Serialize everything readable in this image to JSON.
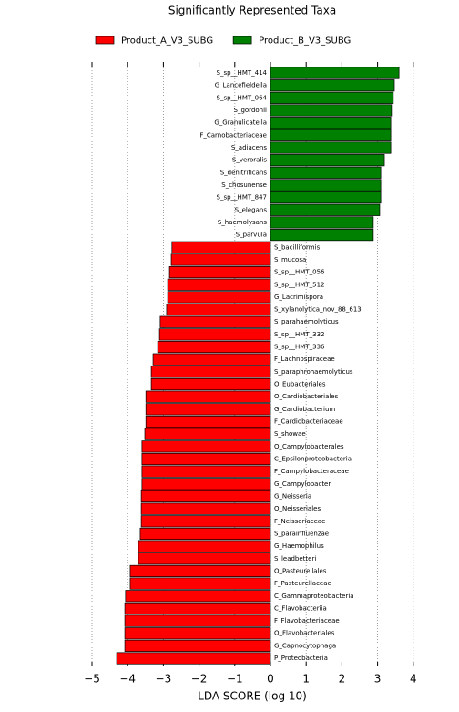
{
  "chart_data": {
    "type": "bar",
    "orientation": "horizontal",
    "title": "Significantly Represented Taxa",
    "xlabel": "LDA SCORE (log 10)",
    "legend": "top",
    "series": [
      {
        "name": "Product_A_V3_SUBG",
        "color": "#ff0000",
        "categories": [
          "S_bacilliformis",
          "S_mucosa",
          "S_sp__HMT_056",
          "S_sp__HMT_512",
          "G_Lacrimispora",
          "S_xylanolytica_nov_88_613",
          "S_parahaemolyticus",
          "S_sp__HMT_332",
          "S_sp__HMT_336",
          "F_Lachnospiraceae",
          "S_paraphrohaemolyticus",
          "O_Eubacteriales",
          "O_Cardiobacteriales",
          "G_Cardiobacterium",
          "F_Cardiobacteriaceae",
          "S_showae",
          "O_Campylobacterales",
          "C_Epsilonproteobacteria",
          "F_Campylobacteraceae",
          "G_Campylobacter",
          "G_Neisseria",
          "O_Neisseriales",
          "F_Neisseriaceae",
          "S_parainfluenzae",
          "G_Haemophilus",
          "S_leadbetteri",
          "O_Pasteurellales",
          "F_Pasteurellaceae",
          "C_Gammaproteobacteria",
          "C_Flavobacteriia",
          "F_Flavobacteriaceae",
          "O_Flavobacteriales",
          "G_Capnocytophaga",
          "P_Proteobacteria"
        ],
        "values": [
          -2.76,
          -2.78,
          -2.83,
          -2.88,
          -2.88,
          -2.91,
          -3.09,
          -3.11,
          -3.16,
          -3.29,
          -3.34,
          -3.34,
          -3.49,
          -3.49,
          -3.49,
          -3.52,
          -3.6,
          -3.6,
          -3.6,
          -3.6,
          -3.62,
          -3.62,
          -3.62,
          -3.65,
          -3.7,
          -3.7,
          -3.93,
          -3.93,
          -4.06,
          -4.08,
          -4.08,
          -4.08,
          -4.08,
          -4.31
        ]
      },
      {
        "name": "Product_B_V3_SUBG",
        "color": "#008000",
        "categories": [
          "S_sp__HMT_414",
          "G_Lancefieldella",
          "S_sp__HMT_064",
          "S_gordonii",
          "G_Granulicatella",
          "F_Carnobacteriaceae",
          "S_adiacens",
          "S_veroralis",
          "S_denitrificans",
          "S_chosunense",
          "S_sp__HMT_847",
          "S_elegans",
          "S_haemolysans",
          "S_parvula"
        ],
        "values": [
          3.6,
          3.47,
          3.44,
          3.39,
          3.37,
          3.37,
          3.37,
          3.19,
          3.09,
          3.09,
          3.09,
          3.06,
          2.88,
          2.88
        ]
      }
    ],
    "xlim": [
      -5.5,
      4.5
    ],
    "xticks": [
      {
        "value": -5,
        "label": "−5"
      },
      {
        "value": -4,
        "label": "−4"
      },
      {
        "value": -3,
        "label": "−3"
      },
      {
        "value": -2,
        "label": "−2"
      },
      {
        "value": -1,
        "label": "−1"
      },
      0,
      1,
      2,
      3,
      4
    ],
    "grid": true
  }
}
